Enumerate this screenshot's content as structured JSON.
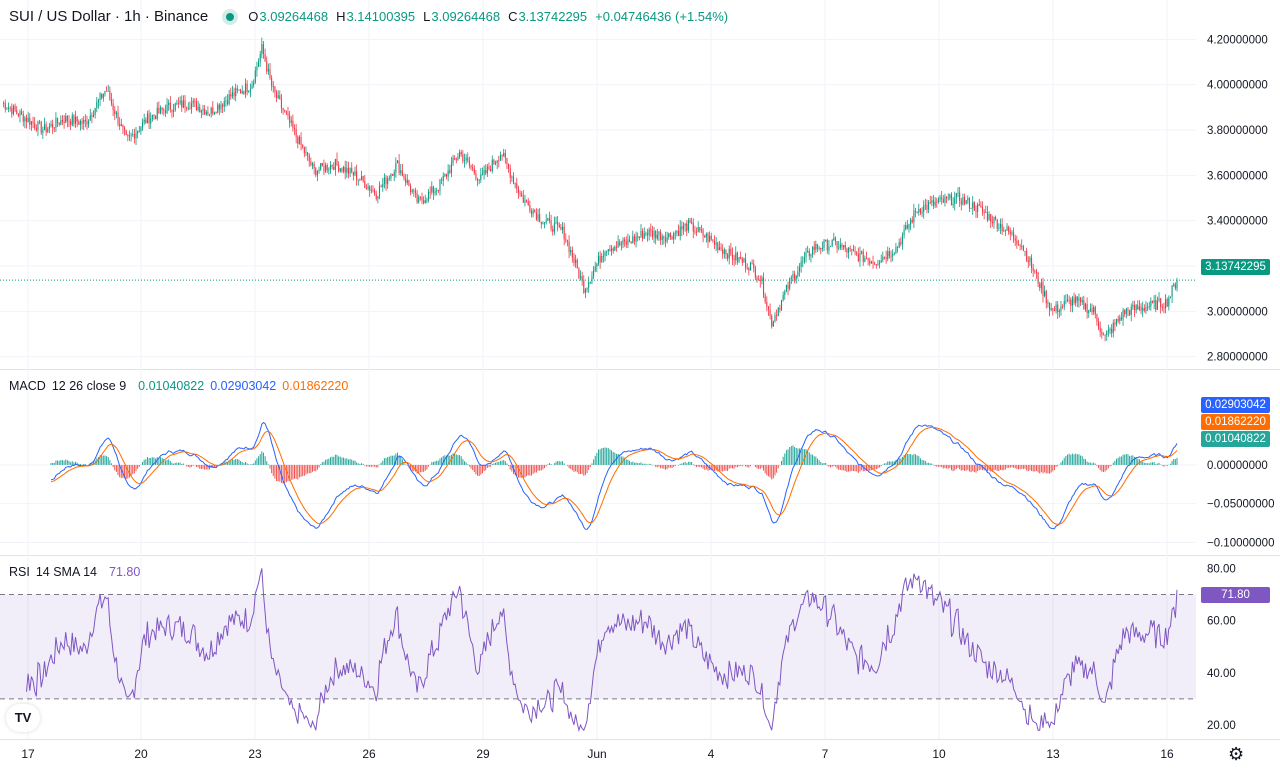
{
  "header": {
    "symbol_title": "SUI / US Dollar · 1h · Binance",
    "open_label": "O",
    "open": "3.09264468",
    "high_label": "H",
    "high": "3.14100395",
    "low_label": "L",
    "low": "3.09264468",
    "close_label": "C",
    "close": "3.13742295",
    "change": "+0.04746436 (+1.54%)"
  },
  "macd_header": {
    "name": "MACD",
    "params": "12 26 close 9",
    "hist": "0.01040822",
    "macd": "0.02903042",
    "signal": "0.01862220"
  },
  "rsi_header": {
    "name": "RSI",
    "params": "14 SMA 14",
    "value": "71.80"
  },
  "badges": {
    "price": "3.13742295",
    "macd": "0.02903042",
    "signal": "0.01862220",
    "hist": "0.01040822",
    "rsi": "71.80"
  },
  "logo_text": "TV",
  "icons": {
    "settings": "gear-icon",
    "logo": "tradingview-logo-icon"
  },
  "colors": {
    "up": "#089981",
    "down": "#f23645",
    "macd": "#2962ff",
    "signal": "#ff6d00",
    "rsi": "#7e57c2"
  },
  "chart_data": [
    {
      "type": "candlestick",
      "pane": "price",
      "interval": "1h",
      "x_tick_labels": [
        "17",
        "20",
        "23",
        "26",
        "29",
        "Jun",
        "4",
        "7",
        "10",
        "13",
        "16"
      ],
      "y_ticks": [
        "4.20000000",
        "4.00000000",
        "3.80000000",
        "3.60000000",
        "3.40000000",
        "3.20000000",
        "3.00000000",
        "2.80000000"
      ],
      "ylim": [
        2.75,
        4.25
      ],
      "last_price": 3.13742295,
      "close_path_approx": [
        [
          0,
          3.92
        ],
        [
          2,
          3.86
        ],
        [
          4,
          3.8
        ],
        [
          6,
          3.85
        ],
        [
          8,
          3.83
        ],
        [
          10,
          3.98
        ],
        [
          12,
          3.75
        ],
        [
          14,
          3.85
        ],
        [
          16,
          3.9
        ],
        [
          18,
          3.92
        ],
        [
          20,
          3.88
        ],
        [
          22,
          3.95
        ],
        [
          24,
          4.0
        ],
        [
          25,
          4.16
        ],
        [
          26,
          3.98
        ],
        [
          28,
          3.8
        ],
        [
          30,
          3.62
        ],
        [
          32,
          3.65
        ],
        [
          34,
          3.6
        ],
        [
          36,
          3.52
        ],
        [
          38,
          3.65
        ],
        [
          40,
          3.48
        ],
        [
          42,
          3.55
        ],
        [
          44,
          3.7
        ],
        [
          46,
          3.58
        ],
        [
          48,
          3.7
        ],
        [
          50,
          3.5
        ],
        [
          52,
          3.4
        ],
        [
          54,
          3.35
        ],
        [
          56,
          3.1
        ],
        [
          58,
          3.28
        ],
        [
          60,
          3.3
        ],
        [
          62,
          3.35
        ],
        [
          64,
          3.33
        ],
        [
          66,
          3.38
        ],
        [
          68,
          3.32
        ],
        [
          70,
          3.25
        ],
        [
          72,
          3.2
        ],
        [
          73,
          3.14
        ],
        [
          74,
          2.95
        ],
        [
          76,
          3.15
        ],
        [
          78,
          3.28
        ],
        [
          80,
          3.3
        ],
        [
          82,
          3.25
        ],
        [
          84,
          3.22
        ],
        [
          86,
          3.28
        ],
        [
          88,
          3.45
        ],
        [
          90,
          3.48
        ],
        [
          92,
          3.5
        ],
        [
          94,
          3.45
        ],
        [
          96,
          3.38
        ],
        [
          98,
          3.3
        ],
        [
          100,
          3.1
        ],
        [
          101,
          3.0
        ],
        [
          103,
          3.05
        ],
        [
          105,
          3.0
        ],
        [
          106,
          2.88
        ],
        [
          108,
          3.0
        ],
        [
          110,
          3.02
        ],
        [
          112,
          3.04
        ],
        [
          113,
          3.137
        ]
      ]
    },
    {
      "type": "line",
      "pane": "macd",
      "y_ticks": [
        "0.00000000",
        "−0.05000000",
        "−0.10000000"
      ],
      "ylim": [
        -0.115,
        0.12
      ],
      "series": [
        {
          "name": "MACD",
          "last": 0.02903042
        },
        {
          "name": "Signal",
          "last": 0.0186222
        },
        {
          "name": "Histogram",
          "last": 0.01040822
        }
      ]
    },
    {
      "type": "line",
      "pane": "rsi",
      "y_ticks": [
        "80.00",
        "60.00",
        "40.00",
        "20.00"
      ],
      "ylim": [
        15,
        84
      ],
      "band": [
        30,
        70
      ],
      "series": [
        {
          "name": "RSI",
          "last": 71.8
        }
      ]
    }
  ]
}
